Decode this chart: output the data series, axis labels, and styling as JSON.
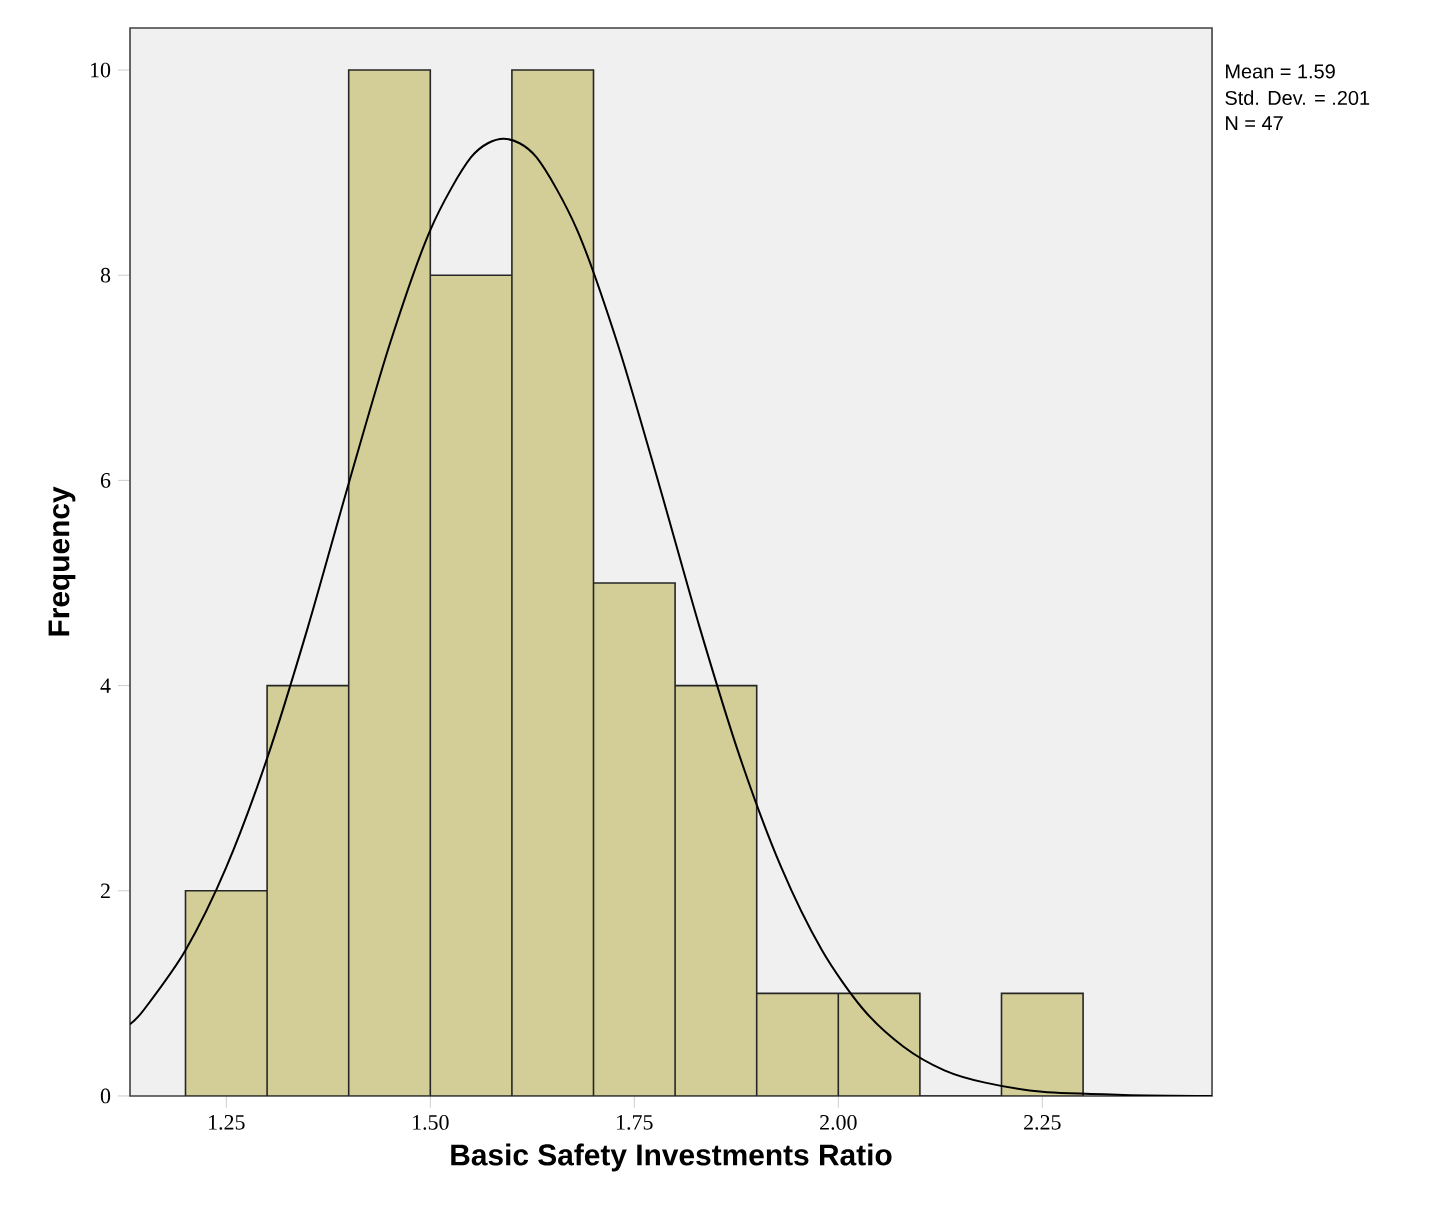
{
  "chart_data": {
    "type": "histogram",
    "xlabel": "Basic Safety Investments Ratio",
    "ylabel": "Frequency",
    "annotations": [
      "Mean = 1.59",
      "Std. Dev. = .201",
      "N = 47"
    ],
    "series": [
      {
        "color": "#d3ce97",
        "bins": [
          1.2,
          1.3,
          1.4,
          1.5,
          1.6,
          1.7,
          1.8,
          1.9,
          2.0,
          2.1,
          2.2,
          2.3
        ],
        "values": [
          2,
          4,
          10,
          8,
          10,
          5,
          4,
          1,
          1,
          0,
          1
        ]
      },
      {
        "type": "line",
        "color": "#000000",
        "x": [
          1.132,
          1.15,
          1.2,
          1.25,
          1.3,
          1.35,
          1.4,
          1.45,
          1.5,
          1.55,
          1.59,
          1.63,
          1.68,
          1.73,
          1.78,
          1.83,
          1.88,
          1.93,
          1.98,
          2.03,
          2.08,
          2.13,
          2.18,
          2.25,
          2.35,
          2.458
        ],
        "values": [
          0.7,
          0.85,
          1.42,
          2.23,
          3.29,
          4.57,
          5.97,
          7.32,
          8.44,
          9.15,
          9.33,
          9.15,
          8.44,
          7.32,
          5.97,
          4.57,
          3.29,
          2.23,
          1.42,
          0.85,
          0.48,
          0.25,
          0.13,
          0.04,
          0.01,
          0.0
        ]
      }
    ],
    "xlim": [
      1.132,
      2.458
    ],
    "ylim": [
      0,
      10.41
    ],
    "xticks": [
      1.25,
      {
        "value": 1.5,
        "label": "1.50"
      },
      1.75,
      {
        "value": 2.0,
        "label": "2.00"
      },
      2.25
    ],
    "yticks": [
      0,
      2,
      4,
      6,
      8,
      10
    ]
  }
}
